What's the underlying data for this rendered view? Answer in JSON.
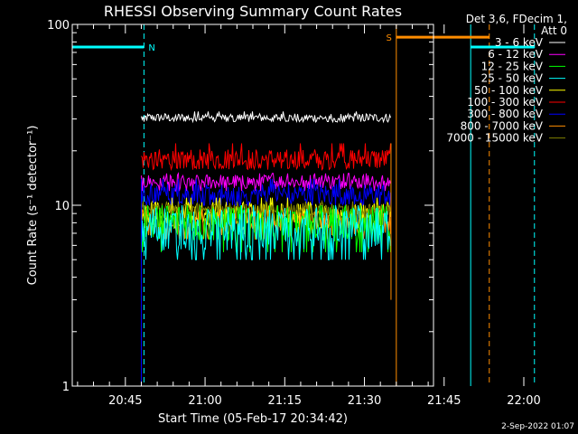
{
  "chart_data": {
    "type": "line",
    "title": "RHESSI Observing Summary Count Rates",
    "xlabel": "Start Time (05-Feb-17 20:34:42)",
    "ylabel": "Count Rate (s⁻¹ detector⁻¹)",
    "yscale": "log",
    "ylim": [
      1,
      100
    ],
    "xlim_min": [
      -4,
      64
    ],
    "xticks": [
      {
        "t": 6,
        "label": "20:45"
      },
      {
        "t": 21,
        "label": "21:00"
      },
      {
        "t": 36,
        "label": "21:15"
      },
      {
        "t": 51,
        "label": "21:30"
      },
      {
        "t": 66,
        "label": "21:45"
      },
      {
        "t": 81,
        "label": "22:00"
      }
    ],
    "yticks": [
      {
        "v": 1,
        "label": "1"
      },
      {
        "v": 10,
        "label": "10"
      },
      {
        "v": 100,
        "label": "100"
      }
    ],
    "legend": {
      "header": [
        "Det 3,6, FDecim 1,",
        "Att 0"
      ],
      "position": "right"
    },
    "data_interval_min": [
      9,
      56
    ],
    "series": [
      {
        "name": "3 - 6 keV",
        "color": "#ffffff",
        "value": 30.5,
        "lo": 29,
        "hi": 33
      },
      {
        "name": "6 - 12 keV",
        "color": "#ff00ff",
        "value": 13.5,
        "lo": 12,
        "hi": 15
      },
      {
        "name": "12 - 25 keV",
        "color": "#00ff00",
        "value": 8.0,
        "lo": 5.5,
        "hi": 10
      },
      {
        "name": "25 - 50 keV",
        "color": "#00ffff",
        "value": 7.5,
        "lo": 5,
        "hi": 10
      },
      {
        "name": "50 - 100 keV",
        "color": "#ffff00",
        "value": 9.0,
        "lo": 7.5,
        "hi": 11
      },
      {
        "name": "100 - 300 keV",
        "color": "#ff0000",
        "value": 18.0,
        "lo": 16,
        "hi": 22
      },
      {
        "name": "300 - 800 keV",
        "color": "#0000ff",
        "value": 11.5,
        "lo": 10,
        "hi": 14
      },
      {
        "name": "800 - 7000 keV",
        "color": "#ff8c00",
        "value": 8.0,
        "lo": 6.5,
        "hi": 9.5
      },
      {
        "name": "7000 - 15000 keV",
        "color": "#808000",
        "value": 9.5,
        "lo": 8.5,
        "hi": 10.5
      }
    ],
    "flags": [
      {
        "label": "N",
        "color": "#00ffff",
        "start_min": -4,
        "end_min": 9.5,
        "level": 75
      },
      {
        "label": "",
        "color": "#00ffff",
        "start_min": 71,
        "end_min": 83,
        "level": 75
      },
      {
        "label": "S",
        "color": "#ff8c00",
        "start_min": 57,
        "end_min": 74.5,
        "level": 85
      }
    ],
    "vlines": [
      {
        "t": -4,
        "color": "#00ffff",
        "dashed": false
      },
      {
        "t": 9.5,
        "color": "#00ffff",
        "dashed": true
      },
      {
        "t": 71,
        "color": "#00ffff",
        "dashed": false
      },
      {
        "t": 83,
        "color": "#00ffff",
        "dashed": true
      },
      {
        "t": 57,
        "color": "#ff8c00",
        "dashed": false
      },
      {
        "t": 74.5,
        "color": "#ff8c00",
        "dashed": true
      }
    ]
  },
  "footer_date": "2-Sep-2022 01:07"
}
